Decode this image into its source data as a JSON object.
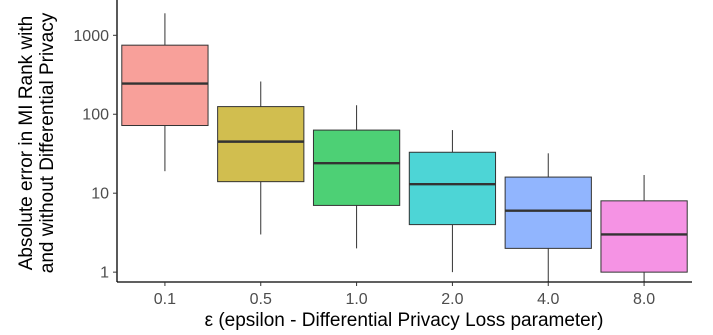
{
  "chart_data": {
    "type": "box",
    "title": "",
    "xlabel": "ε  (epsilon - Differential Privacy Loss parameter)",
    "ylabel_lines": [
      "Absolute error in MI Rank with",
      "and without Differential Privacy"
    ],
    "yscale": "log",
    "ylim": [
      0.75,
      2800
    ],
    "yticks": [
      1,
      10,
      100,
      1000
    ],
    "ytick_labels": [
      "1",
      "10",
      "100",
      "1000"
    ],
    "grid": false,
    "categories": [
      "0.1",
      "0.5",
      "1.0",
      "2.0",
      "4.0",
      "8.0"
    ],
    "boxes": [
      {
        "label": "0.1",
        "whisker_low": 19,
        "q1": 72,
        "median": 245,
        "q3": 750,
        "whisker_high": 1900,
        "color": "#F8A09A"
      },
      {
        "label": "0.5",
        "whisker_low": 3,
        "q1": 14,
        "median": 45,
        "q3": 125,
        "whisker_high": 260,
        "color": "#D1BE4F"
      },
      {
        "label": "1.0",
        "whisker_low": 2,
        "q1": 7,
        "median": 24,
        "q3": 63,
        "whisker_high": 130,
        "color": "#4DD075"
      },
      {
        "label": "2.0",
        "whisker_low": 1,
        "q1": 4,
        "median": 13,
        "q3": 33,
        "whisker_high": 63,
        "color": "#4DD5D6"
      },
      {
        "label": "4.0",
        "whisker_low": 0.75,
        "q1": 2,
        "median": 6,
        "q3": 16,
        "whisker_high": 32,
        "color": "#91B5FE"
      },
      {
        "label": "8.0",
        "whisker_low": 0.75,
        "q1": 1,
        "median": 3,
        "q3": 8,
        "whisker_high": 17,
        "color": "#F593E4"
      }
    ],
    "style": {
      "box_stroke": "#333333",
      "median_stroke": "#333333",
      "axis_color": "#000000"
    }
  }
}
